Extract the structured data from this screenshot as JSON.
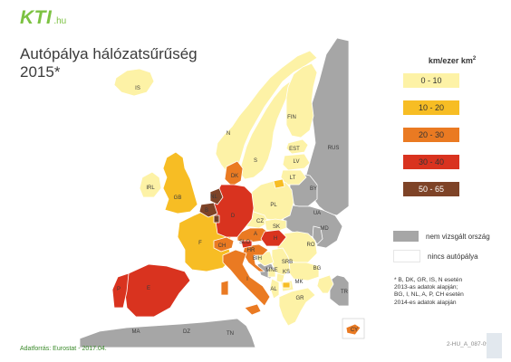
{
  "logo": {
    "name": "KTI",
    "tld": ".hu"
  },
  "title": {
    "line1": "Autópálya hálózatsűrűség",
    "line2": "2015*"
  },
  "legend": {
    "unit_text": "km/ezer km",
    "unit_sup": "2",
    "classes": [
      {
        "label": "0 - 10",
        "color": "#fdf2a6"
      },
      {
        "label": "10 - 20",
        "color": "#f7bd24"
      },
      {
        "label": "20 - 30",
        "color": "#ea7a22"
      },
      {
        "label": "30 - 40",
        "color": "#d9331f"
      },
      {
        "label": "50 - 65",
        "color": "#7e4327"
      }
    ],
    "not_examined": {
      "label": "nem vizsgált ország",
      "color": "#a6a6a6"
    },
    "no_motorway": {
      "label": "nincs autópálya",
      "color": "#ffffff"
    }
  },
  "note": {
    "line1": "* B, DK, GR, IS, N esetén",
    "line2": "2013-as adatok alapján;",
    "line3": "BG, I, NL, A, P, CH esetén",
    "line4": "2014-es adatok alapján"
  },
  "source": "Adatforrás: Eurostat - 2017.04.",
  "code": "2-HU_A_087-09",
  "map": {
    "sea_color": "#ffffff",
    "country_labels": [
      "IS",
      "N",
      "S",
      "FIN",
      "RUS",
      "EST",
      "LV",
      "LT",
      "DK",
      "IRL",
      "GB",
      "NL",
      "PL",
      "BY",
      "B",
      "D",
      "L",
      "CZ",
      "SK",
      "UA",
      "F",
      "CH",
      "A",
      "H",
      "MD",
      "RO",
      "SLO",
      "HR",
      "BIH",
      "SRB",
      "MNE",
      "KS",
      "BG",
      "MK",
      "AL",
      "P",
      "E",
      "I",
      "GR",
      "TR",
      "MA",
      "DZ",
      "TN",
      "CY"
    ]
  }
}
